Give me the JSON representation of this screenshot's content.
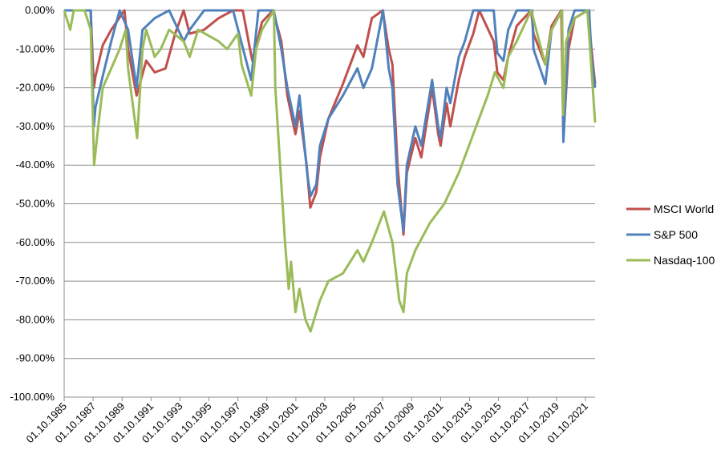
{
  "chart_data": {
    "type": "line",
    "title": "",
    "xlabel": "",
    "ylabel": "",
    "ylim": [
      -100,
      0
    ],
    "xlim": [
      "1985-10-01",
      "2022-06-01"
    ],
    "grid": "horizontal",
    "legend_position": "right",
    "y_ticks": [
      "0.00%",
      "-10.00%",
      "-20.00%",
      "-30.00%",
      "-40.00%",
      "-50.00%",
      "-60.00%",
      "-70.00%",
      "-80.00%",
      "-90.00%",
      "-100.00%"
    ],
    "x_ticks": [
      "01.10.1985",
      "01.10.1987",
      "01.10.1989",
      "01.10.1991",
      "01.10.1993",
      "01.10.1995",
      "01.10.1997",
      "01.10.1999",
      "01.10.2001",
      "01.10.2003",
      "01.10.2005",
      "01.10.2007",
      "01.10.2009",
      "01.10.2011",
      "01.10.2013",
      "01.10.2015",
      "01.10.2017",
      "01.10.2019",
      "01.10.2021"
    ],
    "series": [
      {
        "name": "MSCI World",
        "color": "#c0504d",
        "x": [
          "1985-10-01",
          "1986-06-01",
          "1987-03-01",
          "1987-08-01",
          "1987-10-20",
          "1987-12-01",
          "1988-06-01",
          "1989-01-01",
          "1989-12-01",
          "1990-03-01",
          "1990-10-01",
          "1991-06-01",
          "1992-01-01",
          "1992-10-01",
          "1993-06-01",
          "1994-01-01",
          "1994-06-01",
          "1995-06-01",
          "1996-06-01",
          "1997-06-01",
          "1998-02-01",
          "1998-08-01",
          "1998-10-01",
          "1999-06-01",
          "2000-03-01",
          "2000-10-01",
          "2001-03-01",
          "2001-09-21",
          "2002-01-01",
          "2002-07-01",
          "2002-10-01",
          "2003-03-01",
          "2003-06-01",
          "2004-01-01",
          "2005-01-01",
          "2006-01-01",
          "2006-06-01",
          "2007-01-01",
          "2007-10-01",
          "2008-03-01",
          "2008-06-01",
          "2008-10-10",
          "2009-03-09",
          "2009-06-01",
          "2010-01-01",
          "2010-06-01",
          "2011-03-01",
          "2011-08-01",
          "2011-10-01",
          "2012-03-01",
          "2012-06-01",
          "2013-01-01",
          "2013-06-01",
          "2014-01-01",
          "2014-06-01",
          "2015-06-01",
          "2015-09-01",
          "2016-02-01",
          "2016-06-01",
          "2017-01-01",
          "2018-01-01",
          "2018-03-01",
          "2018-12-24",
          "2019-06-01",
          "2020-02-01",
          "2020-03-23",
          "2020-08-01",
          "2021-01-01",
          "2021-12-01",
          "2022-03-01",
          "2022-06-01"
        ],
        "values": [
          0,
          0,
          0,
          0,
          -20,
          -17,
          -9,
          -5,
          0,
          -10,
          -22,
          -13,
          -16,
          -15,
          -6,
          0,
          -6,
          -5,
          -2,
          0,
          0,
          -10,
          -13,
          -3,
          0,
          -8,
          -22,
          -32,
          -26,
          -40,
          -51,
          -47,
          -38,
          -28,
          -19,
          -9,
          -12,
          -2,
          0,
          -10,
          -14,
          -40,
          -58,
          -42,
          -33,
          -38,
          -20,
          -32,
          -35,
          -24,
          -30,
          -18,
          -12,
          -6,
          0,
          -8,
          -16,
          -18,
          -12,
          -4,
          0,
          -6,
          -14,
          -4,
          0,
          -33,
          -10,
          -2,
          0,
          -10,
          -19
        ]
      },
      {
        "name": "S&P 500",
        "color": "#4f81bd",
        "x": [
          "1985-10-01",
          "1986-06-01",
          "1987-03-01",
          "1987-08-01",
          "1987-10-20",
          "1987-12-01",
          "1988-06-01",
          "1989-01-01",
          "1989-08-01",
          "1990-03-01",
          "1990-10-01",
          "1991-03-01",
          "1992-01-01",
          "1993-01-01",
          "1994-01-01",
          "1994-06-01",
          "1995-06-01",
          "1996-06-01",
          "1997-06-01",
          "1998-08-31",
          "1999-03-01",
          "2000-03-24",
          "2000-10-01",
          "2001-03-01",
          "2001-09-21",
          "2002-01-01",
          "2002-07-23",
          "2002-10-09",
          "2003-03-01",
          "2003-06-01",
          "2004-01-01",
          "2005-01-01",
          "2006-01-01",
          "2006-06-01",
          "2007-01-01",
          "2007-10-09",
          "2008-03-01",
          "2008-06-01",
          "2008-10-10",
          "2009-03-09",
          "2009-06-01",
          "2010-01-01",
          "2010-06-01",
          "2011-03-01",
          "2011-08-01",
          "2011-10-01",
          "2012-03-01",
          "2012-06-01",
          "2013-01-01",
          "2013-06-01",
          "2014-01-01",
          "2015-06-01",
          "2015-09-01",
          "2016-02-01",
          "2016-06-01",
          "2017-01-01",
          "2018-01-26",
          "2018-03-01",
          "2018-12-24",
          "2019-06-01",
          "2020-02-19",
          "2020-03-23",
          "2020-08-01",
          "2021-01-01",
          "2022-01-03",
          "2022-03-01",
          "2022-06-01"
        ],
        "values": [
          0,
          0,
          0,
          0,
          -30,
          -25,
          -17,
          -8,
          0,
          -5,
          -20,
          -5,
          -2,
          0,
          -8,
          -5,
          0,
          0,
          0,
          -18,
          0,
          0,
          -10,
          -20,
          -30,
          -22,
          -43,
          -48,
          -45,
          -35,
          -28,
          -22,
          -15,
          -20,
          -15,
          0,
          -15,
          -20,
          -45,
          -57,
          -40,
          -30,
          -35,
          -18,
          -30,
          -33,
          -20,
          -24,
          -12,
          -8,
          0,
          0,
          -11,
          -13,
          -5,
          0,
          0,
          -10,
          -19,
          -5,
          0,
          -34,
          -5,
          0,
          0,
          -12,
          -20
        ]
      },
      {
        "name": "Nasdaq-100",
        "color": "#9bbb59",
        "x": [
          "1985-10-01",
          "1986-03-01",
          "1986-06-01",
          "1987-03-01",
          "1987-08-01",
          "1987-10-26",
          "1988-03-01",
          "1988-06-01",
          "1989-01-01",
          "1989-08-01",
          "1990-01-01",
          "1990-03-01",
          "1990-10-16",
          "1991-03-01",
          "1991-06-01",
          "1992-01-01",
          "1992-06-01",
          "1993-01-01",
          "1994-01-01",
          "1994-06-01",
          "1995-01-01",
          "1996-06-01",
          "1997-01-01",
          "1997-10-01",
          "1998-01-01",
          "1998-08-31",
          "1999-01-01",
          "1999-06-01",
          "2000-03-27",
          "2000-05-01",
          "2000-10-01",
          "2001-01-01",
          "2001-04-04",
          "2001-06-01",
          "2001-09-21",
          "2002-01-01",
          "2002-06-01",
          "2002-10-07",
          "2003-06-01",
          "2004-01-01",
          "2005-01-01",
          "2006-01-01",
          "2006-06-01",
          "2007-01-01",
          "2007-10-31",
          "2008-06-01",
          "2008-11-20",
          "2009-03-09",
          "2009-06-01",
          "2010-01-01",
          "2011-01-01",
          "2012-01-01",
          "2013-01-01",
          "2014-01-01",
          "2015-01-01",
          "2015-07-01",
          "2016-02-01",
          "2016-06-01",
          "2017-01-01",
          "2018-01-01",
          "2018-12-24",
          "2019-06-01",
          "2020-02-19",
          "2020-03-16",
          "2020-06-01",
          "2021-01-01",
          "2021-11-19",
          "2022-03-01",
          "2022-06-01"
        ],
        "values": [
          0,
          -5,
          0,
          0,
          -5,
          -40,
          -28,
          -20,
          -15,
          -10,
          -5,
          -15,
          -33,
          -10,
          -5,
          -12,
          -10,
          -5,
          -8,
          -12,
          -5,
          -8,
          -10,
          -6,
          -14,
          -22,
          -10,
          -5,
          0,
          -20,
          -45,
          -60,
          -72,
          -65,
          -78,
          -72,
          -80,
          -83,
          -75,
          -70,
          -68,
          -62,
          -65,
          -60,
          -52,
          -60,
          -75,
          -78,
          -68,
          -62,
          -55,
          -50,
          -42,
          -32,
          -22,
          -16,
          -20,
          -12,
          -8,
          0,
          -14,
          -5,
          0,
          -27,
          -8,
          -2,
          0,
          -15,
          -29
        ]
      }
    ]
  }
}
